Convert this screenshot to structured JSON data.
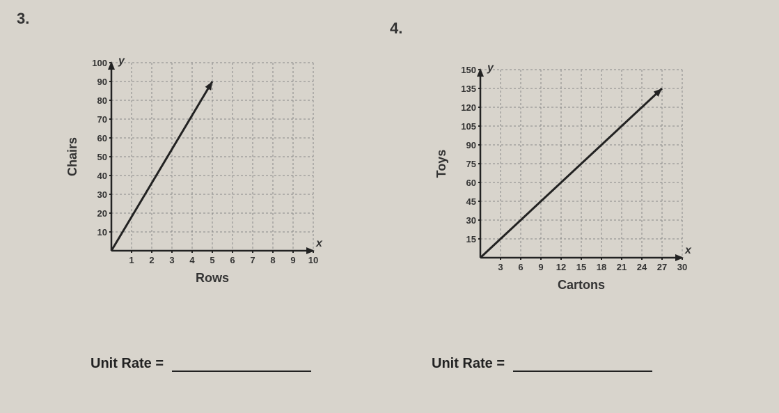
{
  "problem3": {
    "number": "3.",
    "chart": {
      "type": "line",
      "ylabel": "Chairs",
      "xlabel": "Rows",
      "y_axis_symbol": "y",
      "x_axis_symbol": "x",
      "y_ticks": [
        10,
        20,
        30,
        40,
        50,
        60,
        70,
        80,
        90,
        100
      ],
      "x_ticks": [
        1,
        2,
        3,
        4,
        5,
        6,
        7,
        8,
        9,
        10
      ],
      "line_points": [
        [
          0,
          0
        ],
        [
          5,
          90
        ]
      ],
      "grid_color": "#888",
      "axis_color": "#222",
      "line_color": "#222",
      "background": "#d8d4cc",
      "tick_fontsize": 13,
      "label_fontsize": 18
    },
    "answer_label": "Unit Rate ="
  },
  "problem4": {
    "number": "4.",
    "chart": {
      "type": "line",
      "ylabel": "Toys",
      "xlabel": "Cartons",
      "y_axis_symbol": "y",
      "x_axis_symbol": "x",
      "y_ticks": [
        15,
        30,
        45,
        60,
        75,
        90,
        105,
        120,
        135,
        150
      ],
      "x_ticks": [
        3,
        6,
        9,
        12,
        15,
        18,
        21,
        24,
        27,
        30
      ],
      "line_points": [
        [
          0,
          0
        ],
        [
          27,
          135
        ]
      ],
      "grid_color": "#888",
      "axis_color": "#222",
      "line_color": "#222",
      "background": "#d8d4cc",
      "tick_fontsize": 13,
      "label_fontsize": 18
    },
    "answer_label": "Unit Rate ="
  }
}
